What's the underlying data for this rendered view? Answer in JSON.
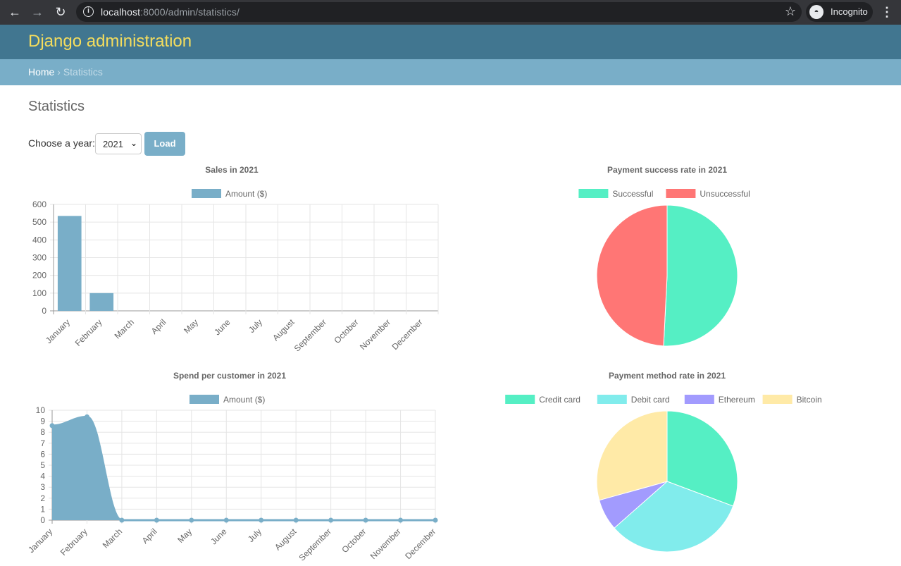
{
  "browser": {
    "url_host": "localhost",
    "url_path": ":8000/admin/statistics/",
    "profile_label": "Incognito"
  },
  "header": {
    "site_name": "Django administration"
  },
  "breadcrumbs": {
    "home": "Home",
    "separator": "›",
    "current": "Statistics"
  },
  "page": {
    "title": "Statistics",
    "year_label": "Choose a year:",
    "year_selected": "2021",
    "load_label": "Load"
  },
  "colors": {
    "header": "#417690",
    "breadcrumbs": "#79aec8",
    "accent": "#79aec8",
    "site_name": "#f5dd5d",
    "teal": "#55efc4",
    "red": "#ff7675",
    "cyan": "#81ecec",
    "purple": "#a29bfe",
    "yellow": "#ffeaa7"
  },
  "chart_data": [
    {
      "type": "bar",
      "title": "Sales in 2021",
      "categories": [
        "January",
        "February",
        "March",
        "April",
        "May",
        "June",
        "July",
        "August",
        "September",
        "October",
        "November",
        "December"
      ],
      "series": [
        {
          "name": "Amount ($)",
          "values": [
            535,
            100,
            0,
            0,
            0,
            0,
            0,
            0,
            0,
            0,
            0,
            0
          ],
          "color": "#79aec8"
        }
      ],
      "ylim": [
        0,
        600
      ],
      "yticks": [
        0,
        100,
        200,
        300,
        400,
        500,
        600
      ],
      "legend": "top",
      "grid": true
    },
    {
      "type": "pie",
      "title": "Payment success rate in 2021",
      "labels": [
        "Successful",
        "Unsuccessful"
      ],
      "values": [
        50.8,
        49.2
      ],
      "colors": [
        "#55efc4",
        "#ff7675"
      ],
      "legend": "top"
    },
    {
      "type": "area",
      "title": "Spend per customer in 2021",
      "categories": [
        "January",
        "February",
        "March",
        "April",
        "May",
        "June",
        "July",
        "August",
        "September",
        "October",
        "November",
        "December"
      ],
      "series": [
        {
          "name": "Amount ($)",
          "values": [
            8.6,
            9.4,
            0,
            0,
            0,
            0,
            0,
            0,
            0,
            0,
            0,
            0
          ],
          "color": "#79aec8"
        }
      ],
      "ylim": [
        0,
        10
      ],
      "yticks": [
        0,
        1,
        2,
        3,
        4,
        5,
        6,
        7,
        8,
        9,
        10
      ],
      "legend": "top",
      "grid": true
    },
    {
      "type": "pie",
      "title": "Payment method rate in 2021",
      "labels": [
        "Credit card",
        "Debit card",
        "Ethereum",
        "Bitcoin"
      ],
      "values": [
        30.7,
        32.8,
        7.2,
        29.3
      ],
      "colors": [
        "#55efc4",
        "#81ecec",
        "#a29bfe",
        "#ffeaa7"
      ],
      "legend": "top"
    }
  ]
}
